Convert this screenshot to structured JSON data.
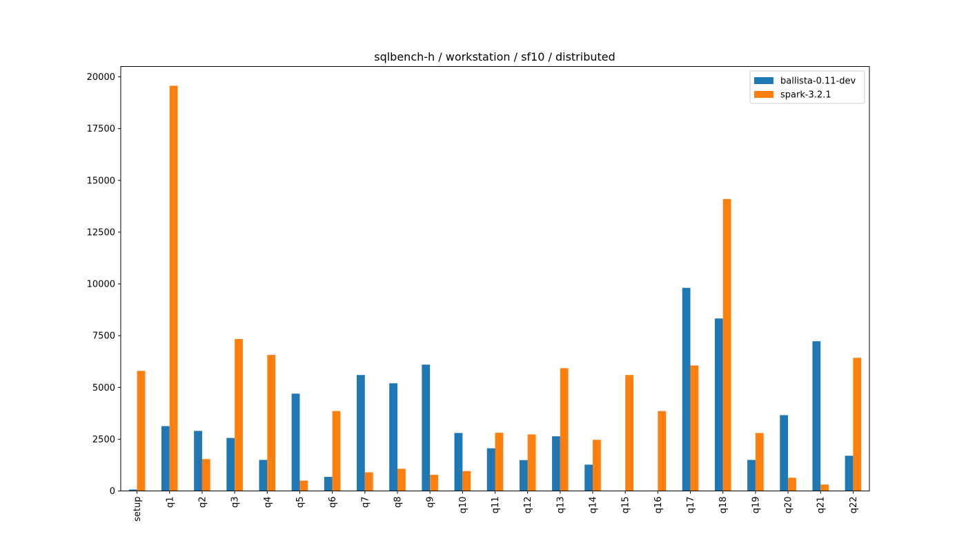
{
  "chart_data": {
    "type": "bar",
    "title": "sqlbench-h / workstation / sf10 / distributed",
    "xlabel": "",
    "ylabel": "",
    "ylim": [
      0,
      20500
    ],
    "yticks": [
      0,
      2500,
      5000,
      7500,
      10000,
      12500,
      15000,
      17500,
      20000
    ],
    "categories": [
      "setup",
      "q1",
      "q2",
      "q3",
      "q4",
      "q5",
      "q6",
      "q7",
      "q8",
      "q9",
      "q10",
      "q11",
      "q12",
      "q13",
      "q14",
      "q15",
      "q16",
      "q17",
      "q18",
      "q19",
      "q20",
      "q21",
      "q22"
    ],
    "series": [
      {
        "name": "ballista-0.11-dev",
        "color": "#1f77b4",
        "values": [
          70,
          3130,
          2900,
          2560,
          1500,
          4700,
          680,
          5600,
          5200,
          6100,
          2800,
          2060,
          1490,
          2640,
          1270,
          0,
          0,
          9810,
          8330,
          1500,
          3660,
          7230,
          1700
        ]
      },
      {
        "name": "spark-3.2.1",
        "color": "#ff7f0e",
        "values": [
          5800,
          19570,
          1540,
          7340,
          6570,
          500,
          3860,
          900,
          1070,
          780,
          960,
          2810,
          2730,
          5930,
          2470,
          5600,
          3860,
          6060,
          14100,
          2800,
          640,
          310,
          6430
        ]
      }
    ],
    "legend": "top-right",
    "grid": false
  }
}
